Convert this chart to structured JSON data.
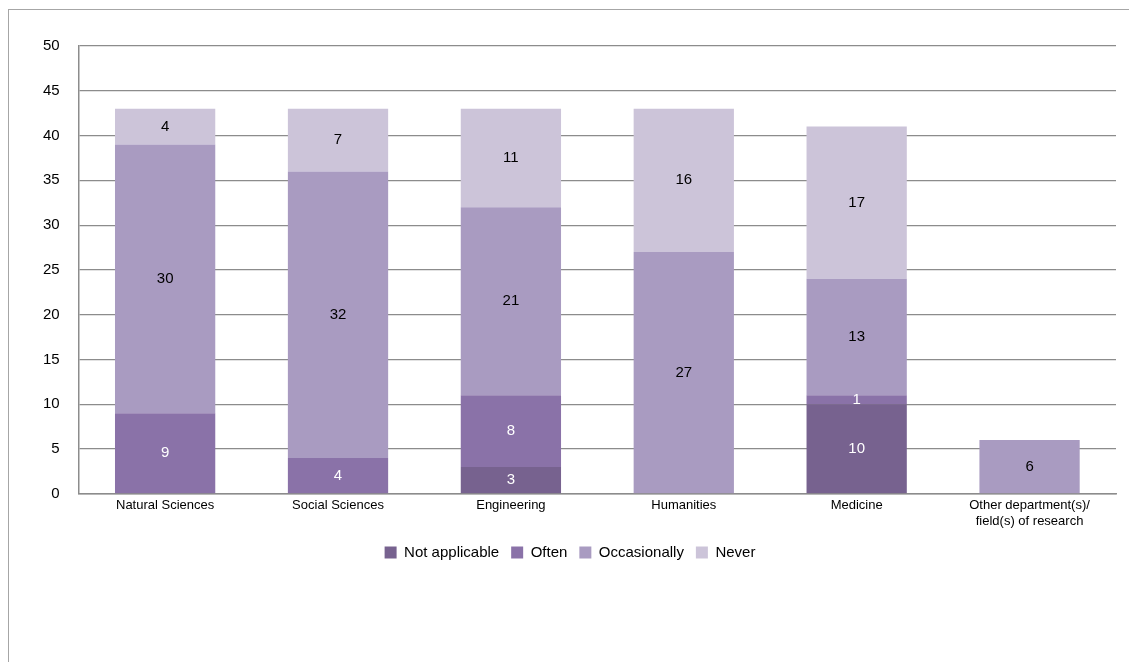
{
  "chart_data": {
    "type": "bar",
    "stacked": true,
    "categories": [
      "Natural Sciences",
      "Social Sciences",
      "Engineering",
      "Humanities",
      "Medicine",
      "Other department(s)/ field(s) of research"
    ],
    "series": [
      {
        "name": "Not applicable",
        "color": "#77628f",
        "values": [
          null,
          null,
          3,
          null,
          10,
          null
        ]
      },
      {
        "name": "Often",
        "color": "#8a72a8",
        "values": [
          9,
          4,
          8,
          null,
          1,
          null
        ]
      },
      {
        "name": "Occasionally",
        "color": "#a99bc1",
        "values": [
          30,
          32,
          21,
          27,
          13,
          6
        ]
      },
      {
        "name": "Never",
        "color": "#ccc4d9",
        "values": [
          4,
          7,
          11,
          16,
          17,
          null
        ]
      }
    ],
    "ylim": [
      0,
      50
    ],
    "yticks": [
      0,
      5,
      10,
      15,
      20,
      25,
      30,
      35,
      40,
      45,
      50
    ],
    "grid": "y",
    "legend": "bottom",
    "data_labels": true
  }
}
